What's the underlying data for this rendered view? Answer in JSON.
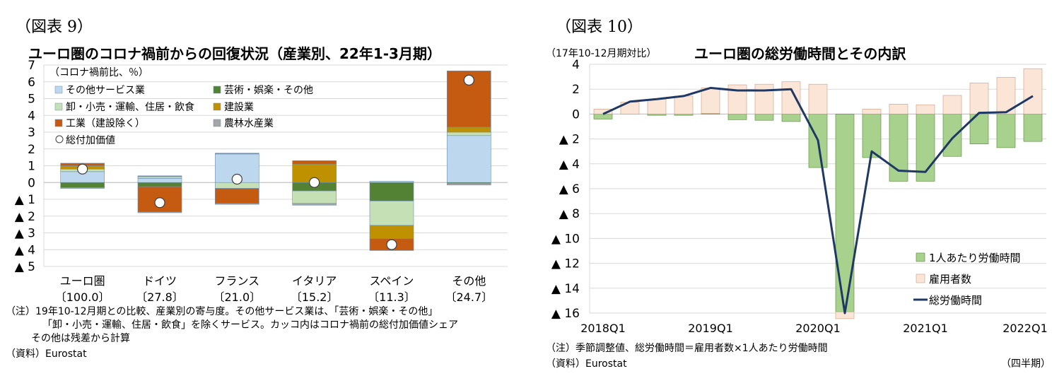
{
  "left": {
    "figure_label": "（図表 9）",
    "title": "ユーロ圏のコロナ禍前からの回復状況（産業別、22年1-3月期）",
    "notes": [
      "（注）19年10-12月期との比較、産業別の寄与度。その他サービス業は、「芸術・娯楽・その他」",
      "「卸・小売・運輸、住居・飲食」を除くサービス。カッコ内はコロナ禍前の総付加価値シェア",
      "その他は残差から計算",
      "（資料）Eurostat"
    ]
  },
  "right": {
    "figure_label": "（図表 10）",
    "title": "ユーロ圏の総労働時間とその内訳",
    "notes": [
      "（注）季節調整値、総労働時間＝雇用者数×1人あたり労働時間",
      "（資料）Eurostat"
    ],
    "xunit": "（四半期）"
  },
  "chart_data": [
    {
      "type": "bar",
      "stacked": true,
      "title": "ユーロ圏のコロナ禍前からの回復状況（産業別、22年1-3月期）",
      "ylabel": "（コロナ禍前比、％）",
      "ylim": [
        -5,
        7
      ],
      "yticks": [
        7,
        6,
        5,
        4,
        3,
        2,
        1,
        0,
        -1,
        -2,
        -3,
        -4,
        -5
      ],
      "yticklabels": [
        "7",
        "6",
        "5",
        "4",
        "3",
        "2",
        "1",
        "0",
        "▲ 1",
        "▲ 2",
        "▲ 3",
        "▲ 4",
        "▲ 5"
      ],
      "categories": [
        "ユーロ圏",
        "ドイツ",
        "フランス",
        "イタリア",
        "スペイン",
        "その他"
      ],
      "category_shares": [
        "〔100.0〕",
        "〔27.8〕",
        "〔21.0〕",
        "〔15.2〕",
        "〔11.3〕",
        "〔24.7〕"
      ],
      "series": [
        {
          "name": "その他サービス業",
          "color": "#bdd7ee",
          "values": [
            0.65,
            0.25,
            1.7,
            0.0,
            0.08,
            2.8
          ]
        },
        {
          "name": "芸術・娯楽・その他",
          "color": "#548235",
          "values": [
            -0.3,
            -0.25,
            0.0,
            -0.5,
            -1.1,
            -0.05
          ]
        },
        {
          "name": "卸・小売・運輸、住居・飲食",
          "color": "#c5e0b4",
          "values": [
            0.15,
            0.1,
            -0.35,
            -0.75,
            -1.45,
            0.2
          ]
        },
        {
          "name": "建設業",
          "color": "#bf9000",
          "values": [
            0.2,
            0.05,
            0.05,
            1.1,
            -0.8,
            0.3
          ]
        },
        {
          "name": "工業（建設除く）",
          "color": "#c55a11",
          "values": [
            0.15,
            -1.5,
            -0.9,
            0.2,
            -0.7,
            3.35
          ]
        },
        {
          "name": "農林水産業",
          "color": "#a5a5a5",
          "values": [
            -0.05,
            -0.05,
            -0.05,
            -0.1,
            0.0,
            -0.1
          ]
        }
      ],
      "total": {
        "name": "総付加価値",
        "values": [
          0.8,
          -1.2,
          0.2,
          0.0,
          -3.7,
          6.1
        ]
      }
    },
    {
      "type": "bar+line",
      "stacked": true,
      "title": "ユーロ圏の総労働時間とその内訳",
      "ylabel": "（17年10-12月期対比）",
      "ylim": [
        -16,
        4
      ],
      "yticks": [
        4,
        2,
        0,
        -2,
        -4,
        -6,
        -8,
        -10,
        -12,
        -14,
        -16
      ],
      "yticklabels": [
        "4",
        "2",
        "0",
        "▲ 2",
        "▲ 4",
        "▲ 6",
        "▲ 8",
        "▲ 10",
        "▲ 12",
        "▲ 14",
        "▲ 16"
      ],
      "x": [
        "2018Q1",
        "2018Q2",
        "2018Q3",
        "2018Q4",
        "2019Q1",
        "2019Q2",
        "2019Q3",
        "2019Q4",
        "2020Q1",
        "2020Q2",
        "2020Q3",
        "2020Q4",
        "2021Q1",
        "2021Q2",
        "2021Q3",
        "2021Q4",
        "2022Q1"
      ],
      "xticklabels": [
        "2018Q1",
        "2019Q1",
        "2020Q1",
        "2021Q1",
        "2022Q1"
      ],
      "xtick_indices": [
        0,
        4,
        8,
        12,
        16
      ],
      "series": [
        {
          "name": "1人あたり労働時間",
          "color": "#a9d18e",
          "values": [
            -0.4,
            0.0,
            -0.1,
            -0.1,
            0.05,
            -0.45,
            -0.5,
            -0.6,
            -4.3,
            -15.9,
            -3.5,
            -5.4,
            -5.4,
            -3.4,
            -2.4,
            -2.7,
            -2.2
          ]
        },
        {
          "name": "雇用者数",
          "color": "#fbe5d6",
          "values": [
            0.4,
            0.95,
            1.2,
            1.45,
            2.05,
            2.35,
            2.4,
            2.6,
            2.4,
            -0.55,
            0.4,
            0.8,
            0.75,
            1.5,
            2.5,
            2.95,
            3.65
          ]
        }
      ],
      "line": {
        "name": "総労働時間",
        "color": "#1f3864",
        "values": [
          0.0,
          1.0,
          1.2,
          1.45,
          2.1,
          1.9,
          1.9,
          2.0,
          -2.1,
          -16.0,
          -3.0,
          -4.55,
          -4.65,
          -1.95,
          0.1,
          0.15,
          1.45
        ]
      }
    }
  ]
}
